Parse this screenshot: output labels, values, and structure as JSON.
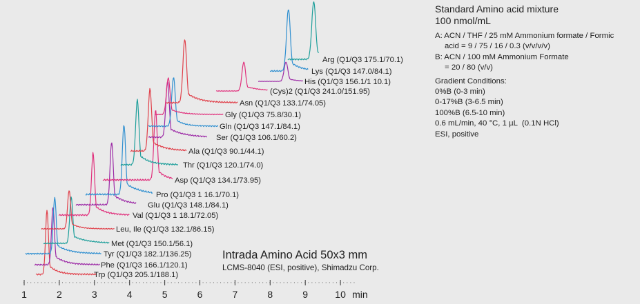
{
  "side_panel": {
    "title": "Standard Amino acid mixture",
    "concentration": "100 nmol/mL",
    "mobile_phase_a_line1": "A: ACN / THF / 25 mM Ammonium formate / Formic",
    "mobile_phase_a_line2": "acid = 9 / 75 / 16 / 0.3 (v/v/v/v)",
    "mobile_phase_b_line1": "B: ACN / 100 mM Ammonium Formate",
    "mobile_phase_b_line2": "= 20 / 80 (v/v)",
    "gradient_title": "Gradient Conditions:",
    "gradient_steps": [
      "0%B (0-3 min)",
      "0-17%B (3-6.5 min)",
      "100%B (6.5-10 min)"
    ],
    "flow": "0.6 mL/min, 40 °C, 1 µL  (0.1N HCl)",
    "ionization": "ESI, positive"
  },
  "caption": {
    "title": "Intrada Amino Acid 50x3 mm",
    "subtitle": "LCMS-8040 (ESI, positive), Shimadzu Corp."
  },
  "chart_data": {
    "type": "line",
    "title": "Intrada Amino Acid 50x3 mm",
    "xlabel": "min",
    "xlim": [
      1,
      10.5
    ],
    "x_ticks": [
      1,
      2,
      3,
      4,
      5,
      6,
      7,
      8,
      9,
      10
    ],
    "x_tick_labels": [
      "1",
      "2",
      "3",
      "4",
      "5",
      "6",
      "7",
      "8",
      "9",
      "10"
    ],
    "grid": false,
    "layout": "stacked offset chromatograms",
    "series": [
      {
        "name": "Trp",
        "label": "Trp (Q1/Q3 205.1/188.1)",
        "retention_time": 1.65,
        "color": "#e0404a"
      },
      {
        "name": "Phe",
        "label": "Phe (Q1/Q3 166.1/120.1)",
        "retention_time": 1.82,
        "color": "#9c2aa6"
      },
      {
        "name": "Tyr",
        "label": "Tyr (Q1/Q3 182.1/136.25)",
        "retention_time": 1.87,
        "color": "#2f8fd0"
      },
      {
        "name": "Met",
        "label": "Met (Q1/Q3 150.1/56.1)",
        "retention_time": 2.34,
        "color": "#1c9e9a"
      },
      {
        "name": "Leu, Ile",
        "label": "Leu, Ile (Q1/Q3 132.1/86.15)",
        "retention_time": 2.28,
        "color": "#e0404a"
      },
      {
        "name": "Val",
        "label": "Val (Q1/Q3 1  18.1/72.05)",
        "retention_time": 2.96,
        "color": "#e0307c"
      },
      {
        "name": "Glu",
        "label": "Glu (Q1/Q3 148.1/84.1)",
        "retention_time": 3.49,
        "color": "#9c2aa6"
      },
      {
        "name": "Pro",
        "label": "Pro (Q1/Q3 1  16.1/70.1)",
        "retention_time": 3.84,
        "color": "#2f8fd0"
      },
      {
        "name": "Asp",
        "label": "Asp (Q1/Q3 134.1/73.95)",
        "retention_time": 4.74,
        "color": "#e0307c"
      },
      {
        "name": "Thr",
        "label": "Thr (Q1/Q3 120.1/74.0)",
        "retention_time": 4.22,
        "color": "#1c9e9a"
      },
      {
        "name": "Ala",
        "label": "Ala (Q1/Q3 90.1/44.1)",
        "retention_time": 4.58,
        "color": "#e0404a"
      },
      {
        "name": "Ser",
        "label": "Ser (Q1/Q3 106.1/60.2)",
        "retention_time": 5.08,
        "color": "#9c2aa6"
      },
      {
        "name": "Gln",
        "label": "Gln (Q1/Q3 147.1/84.1)",
        "retention_time": 5.25,
        "color": "#2f8fd0"
      },
      {
        "name": "Gly",
        "label": "Gly (Q1/Q3 75.8/30.1)",
        "retention_time": 5.1,
        "color": "#e0307c"
      },
      {
        "name": "Asn",
        "label": "Asn (Q1/Q3 133.1/74.05)",
        "retention_time": 5.57,
        "color": "#e0404a"
      },
      {
        "name": "(Cys)2",
        "label": "(Cys)2 (Q1/Q3 241.0/151.95)",
        "retention_time": 7.25,
        "color": "#e0307c"
      },
      {
        "name": "His",
        "label": "His (Q1/Q3 156.1/1   10.1)",
        "retention_time": 8.45,
        "color": "#9c2aa6"
      },
      {
        "name": "Lys",
        "label": "Lys (Q1/Q3 147.0/84.1)",
        "retention_time": 8.52,
        "color": "#2f8fd0"
      },
      {
        "name": "Arg",
        "label": "Arg (Q1/Q3 175.1/70.1)",
        "retention_time": 9.24,
        "color": "#1c9e9a"
      }
    ]
  }
}
